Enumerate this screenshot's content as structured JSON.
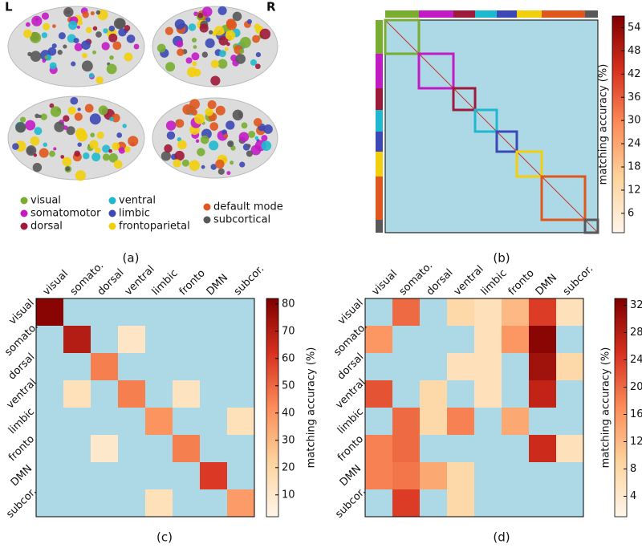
{
  "panel_a": {
    "hemisphere_left": "L",
    "hemisphere_right": "R",
    "caption": "(a)",
    "legend": [
      {
        "name": "visual",
        "color": "#78ad2f"
      },
      {
        "name": "somatomotor",
        "color": "#c21bc4"
      },
      {
        "name": "dorsal",
        "color": "#9e1a3a"
      },
      {
        "name": "ventral",
        "color": "#1fb9cf"
      },
      {
        "name": "limbic",
        "color": "#3b48b5"
      },
      {
        "name": "frontoparietal",
        "color": "#f2cf0c"
      },
      {
        "name": "default mode",
        "color": "#df571c"
      },
      {
        "name": "subcortical",
        "color": "#585858"
      }
    ]
  },
  "chart_data": [
    {
      "type": "block-matrix",
      "caption": "(b)",
      "block_sizes": [
        42,
        43,
        27,
        27,
        25,
        31,
        54,
        16
      ],
      "colorbar_label": "matching accuracy (%)",
      "clim": [
        1,
        57
      ],
      "cticks": [
        6,
        12,
        18,
        24,
        30,
        36,
        42,
        48,
        54
      ]
    },
    {
      "type": "heatmap",
      "caption": "(c)",
      "x_categories": [
        "visual",
        "somato.",
        "dorsal",
        "ventral",
        "limbic",
        "fronto",
        "DMN",
        "subcor."
      ],
      "y_categories": [
        "visual",
        "somato.",
        "dorsal",
        "ventral",
        "limbic",
        "fronto",
        "DMN",
        "subcor."
      ],
      "values": [
        [
          80,
          0,
          0,
          0,
          0,
          0,
          0,
          0
        ],
        [
          0,
          70,
          0,
          12,
          0,
          0,
          0,
          0
        ],
        [
          0,
          0,
          45,
          0,
          0,
          0,
          0,
          0
        ],
        [
          0,
          15,
          0,
          45,
          0,
          13,
          0,
          0
        ],
        [
          0,
          0,
          0,
          0,
          40,
          0,
          0,
          15
        ],
        [
          0,
          0,
          10,
          0,
          0,
          45,
          0,
          0
        ],
        [
          0,
          0,
          0,
          0,
          0,
          0,
          60,
          0
        ],
        [
          0,
          0,
          0,
          0,
          15,
          0,
          0,
          38
        ]
      ],
      "colorbar_label": "matching accuracy (%)",
      "clim": [
        2,
        82
      ],
      "cticks": [
        10,
        20,
        30,
        40,
        50,
        60,
        70,
        80
      ]
    },
    {
      "type": "heatmap",
      "caption": "(d)",
      "x_categories": [
        "visual",
        "somato.",
        "dorsal",
        "ventral",
        "limbic",
        "fronto",
        "DMN",
        "subcor."
      ],
      "y_categories": [
        "visual",
        "somato.",
        "dorsal",
        "ventral",
        "limbic",
        "fronto",
        "DMN",
        "subcor."
      ],
      "values": [
        [
          0,
          20,
          0,
          8,
          6,
          12,
          24,
          6
        ],
        [
          16,
          0,
          0,
          0,
          6,
          16,
          32,
          0
        ],
        [
          0,
          0,
          0,
          6,
          6,
          0,
          30,
          8
        ],
        [
          22,
          0,
          8,
          0,
          6,
          0,
          27,
          0
        ],
        [
          0,
          20,
          8,
          18,
          0,
          14,
          0,
          0
        ],
        [
          18,
          20,
          0,
          0,
          0,
          0,
          26,
          6
        ],
        [
          18,
          19,
          14,
          8,
          0,
          0,
          0,
          0
        ],
        [
          0,
          24,
          0,
          8,
          0,
          0,
          0,
          0
        ]
      ],
      "colorbar_label": "matching accuracy (%)",
      "clim": [
        1,
        33
      ],
      "cticks": [
        4,
        8,
        12,
        16,
        20,
        24,
        28,
        32
      ]
    }
  ]
}
